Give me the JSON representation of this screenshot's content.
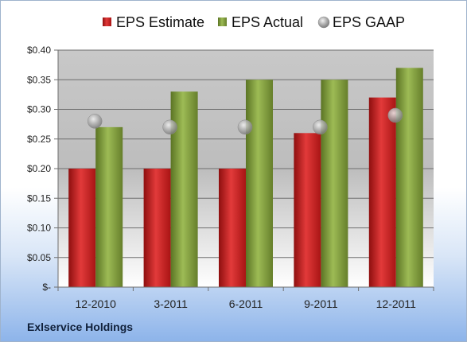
{
  "company_name": "Exlservice Holdings",
  "chart_data": {
    "type": "bar",
    "title": "",
    "xlabel": "",
    "ylabel": "",
    "categories": [
      "12-2010",
      "3-2011",
      "6-2011",
      "9-2011",
      "12-2011"
    ],
    "series": [
      {
        "name": "EPS Estimate",
        "kind": "bar",
        "color": "#cc1f1f",
        "values": [
          0.2,
          0.2,
          0.2,
          0.26,
          0.32
        ]
      },
      {
        "name": "EPS Actual",
        "kind": "bar",
        "color": "#7a9a35",
        "values": [
          0.27,
          0.33,
          0.35,
          0.35,
          0.37
        ]
      },
      {
        "name": "EPS GAAP",
        "kind": "marker",
        "color": "#a8a8a8",
        "values": [
          0.28,
          0.27,
          0.27,
          0.27,
          0.29
        ]
      }
    ],
    "ylim": [
      0,
      0.4
    ],
    "yticks": [
      0,
      0.05,
      0.1,
      0.15,
      0.2,
      0.25,
      0.3,
      0.35,
      0.4
    ],
    "ytick_labels": [
      "$-",
      "$0.05",
      "$0.10",
      "$0.15",
      "$0.20",
      "$0.25",
      "$0.30",
      "$0.35",
      "$0.40"
    ],
    "grid": true,
    "legend_position": "top"
  }
}
